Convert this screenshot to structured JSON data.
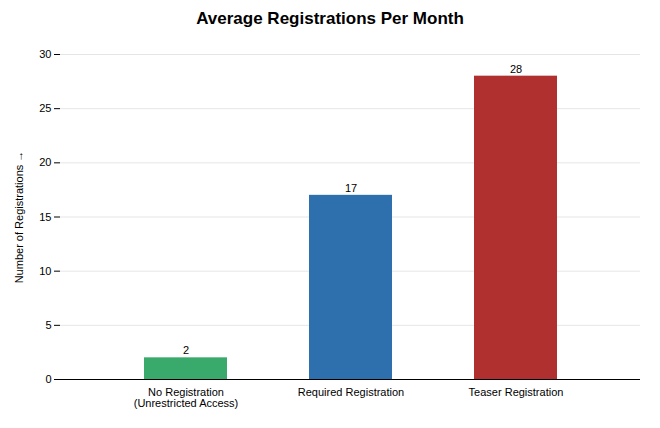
{
  "chart_data": {
    "type": "bar",
    "title": "Average Registrations Per Month",
    "categories": [
      "No Registration\n(Unrestricted Access)",
      "Required Registration",
      "Teaser Registration"
    ],
    "values": [
      2,
      17,
      28
    ],
    "colors": [
      "#3aaa6c",
      "#2e6fad",
      "#b03030"
    ],
    "ylabel": "Number of Registrations",
    "ylim": [
      0,
      30
    ],
    "yticks": [
      0,
      5,
      10,
      15,
      20,
      25,
      30
    ],
    "grid": true,
    "data_labels": true
  }
}
